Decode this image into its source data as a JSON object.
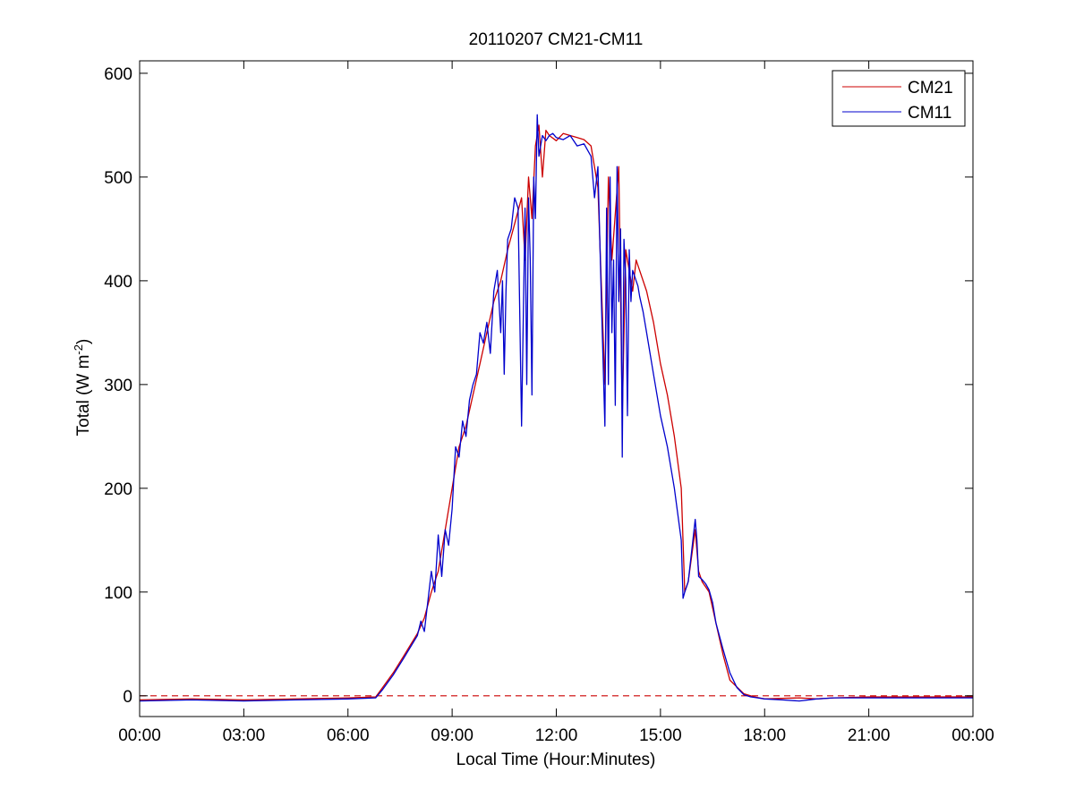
{
  "chart_data": {
    "type": "line",
    "title": "20110207 CM21-CM11",
    "xlabel": "Local Time (Hour:Minutes)",
    "ylabel": "Total (W m",
    "ylabel_unit_sup": "-2",
    "ylabel_close": ")",
    "xlim": [
      0,
      24
    ],
    "ylim": [
      -20,
      612
    ],
    "x_ticks": [
      {
        "value": 0,
        "label": "00:00"
      },
      {
        "value": 3,
        "label": "03:00"
      },
      {
        "value": 6,
        "label": "06:00"
      },
      {
        "value": 9,
        "label": "09:00"
      },
      {
        "value": 12,
        "label": "12:00"
      },
      {
        "value": 15,
        "label": "15:00"
      },
      {
        "value": 18,
        "label": "18:00"
      },
      {
        "value": 21,
        "label": "21:00"
      },
      {
        "value": 24,
        "label": "00:00"
      }
    ],
    "y_ticks": [
      {
        "value": 0,
        "label": "0"
      },
      {
        "value": 100,
        "label": "100"
      },
      {
        "value": 200,
        "label": "200"
      },
      {
        "value": 300,
        "label": "300"
      },
      {
        "value": 400,
        "label": "400"
      },
      {
        "value": 500,
        "label": "500"
      },
      {
        "value": 600,
        "label": "600"
      }
    ],
    "grid": false,
    "legend_position": "top-right",
    "reference_line": {
      "y": 0,
      "color": "#cc0000",
      "style": "dashed"
    },
    "series": [
      {
        "name": "CM21",
        "color": "#cc0000",
        "x": [
          0,
          1.5,
          3,
          4.5,
          6,
          6.8,
          7.0,
          7.3,
          7.6,
          8.0,
          8.2,
          8.4,
          8.6,
          8.8,
          9.0,
          9.2,
          9.4,
          9.6,
          9.8,
          10.0,
          10.2,
          10.4,
          10.6,
          10.8,
          11.0,
          11.1,
          11.2,
          11.3,
          11.4,
          11.5,
          11.6,
          11.7,
          11.8,
          12.0,
          12.2,
          12.4,
          12.6,
          12.8,
          13.0,
          13.2,
          13.4,
          13.5,
          13.6,
          13.8,
          13.9,
          14.0,
          14.2,
          14.3,
          14.4,
          14.6,
          14.8,
          15.0,
          15.2,
          15.4,
          15.6,
          15.7,
          15.8,
          16.0,
          16.1,
          16.2,
          16.4,
          16.6,
          16.8,
          17.0,
          17.4,
          17.7,
          18.0,
          19.0,
          19.5,
          20.0,
          21.0,
          22.0,
          23.0,
          24.0
        ],
        "y": [
          -4,
          -3,
          -4,
          -3,
          -2,
          -1,
          8,
          22,
          38,
          60,
          75,
          100,
          120,
          160,
          200,
          240,
          260,
          290,
          320,
          350,
          380,
          400,
          430,
          455,
          480,
          420,
          500,
          460,
          530,
          550,
          500,
          545,
          540,
          535,
          542,
          540,
          538,
          536,
          530,
          490,
          300,
          500,
          420,
          510,
          270,
          430,
          390,
          420,
          410,
          390,
          360,
          320,
          290,
          250,
          200,
          100,
          110,
          160,
          120,
          110,
          100,
          70,
          40,
          15,
          2,
          -1,
          -3,
          -2,
          -3,
          -2,
          -1,
          -1,
          -1,
          -1
        ]
      },
      {
        "name": "CM11",
        "color": "#0000cc",
        "x": [
          0,
          1.5,
          3,
          4.5,
          6,
          6.8,
          7.0,
          7.3,
          7.6,
          8.0,
          8.1,
          8.2,
          8.4,
          8.5,
          8.6,
          8.7,
          8.8,
          8.9,
          9.0,
          9.1,
          9.2,
          9.3,
          9.4,
          9.5,
          9.6,
          9.7,
          9.8,
          9.9,
          10.0,
          10.1,
          10.2,
          10.3,
          10.4,
          10.45,
          10.5,
          10.55,
          10.6,
          10.7,
          10.8,
          10.9,
          11.0,
          11.1,
          11.15,
          11.2,
          11.25,
          11.3,
          11.35,
          11.4,
          11.45,
          11.5,
          11.55,
          11.6,
          11.7,
          11.8,
          11.9,
          12.0,
          12.2,
          12.4,
          12.6,
          12.8,
          13.0,
          13.1,
          13.2,
          13.3,
          13.4,
          13.45,
          13.5,
          13.55,
          13.6,
          13.65,
          13.7,
          13.75,
          13.8,
          13.85,
          13.9,
          13.95,
          14.0,
          14.05,
          14.1,
          14.15,
          14.2,
          14.25,
          14.3,
          14.35,
          14.4,
          14.5,
          14.6,
          14.8,
          15.0,
          15.2,
          15.4,
          15.6,
          15.65,
          15.7,
          15.8,
          15.9,
          16.0,
          16.05,
          16.1,
          16.2,
          16.3,
          16.4,
          16.5,
          16.6,
          16.8,
          17.0,
          17.2,
          17.4,
          17.6,
          17.8,
          18.0,
          18.5,
          19.0,
          19.5,
          20.0,
          21.0,
          22.0,
          23.0,
          24.0
        ],
        "y": [
          -5,
          -4,
          -5,
          -4,
          -3,
          -2,
          6,
          20,
          36,
          58,
          72,
          62,
          120,
          100,
          155,
          115,
          160,
          145,
          180,
          240,
          230,
          265,
          250,
          285,
          300,
          310,
          350,
          340,
          360,
          330,
          390,
          410,
          350,
          400,
          310,
          390,
          440,
          450,
          480,
          470,
          260,
          470,
          300,
          480,
          420,
          290,
          500,
          460,
          560,
          520,
          530,
          540,
          535,
          540,
          542,
          538,
          536,
          540,
          530,
          532,
          520,
          480,
          510,
          380,
          260,
          470,
          300,
          500,
          350,
          420,
          280,
          510,
          380,
          450,
          230,
          440,
          400,
          270,
          430,
          380,
          410,
          405,
          400,
          395,
          385,
          370,
          350,
          310,
          270,
          240,
          200,
          150,
          94,
          100,
          110,
          140,
          170,
          150,
          115,
          112,
          108,
          102,
          90,
          70,
          45,
          22,
          8,
          1,
          -1,
          -2,
          -3,
          -4,
          -5,
          -3,
          -2,
          -2,
          -2,
          -2,
          -2
        ]
      }
    ]
  }
}
